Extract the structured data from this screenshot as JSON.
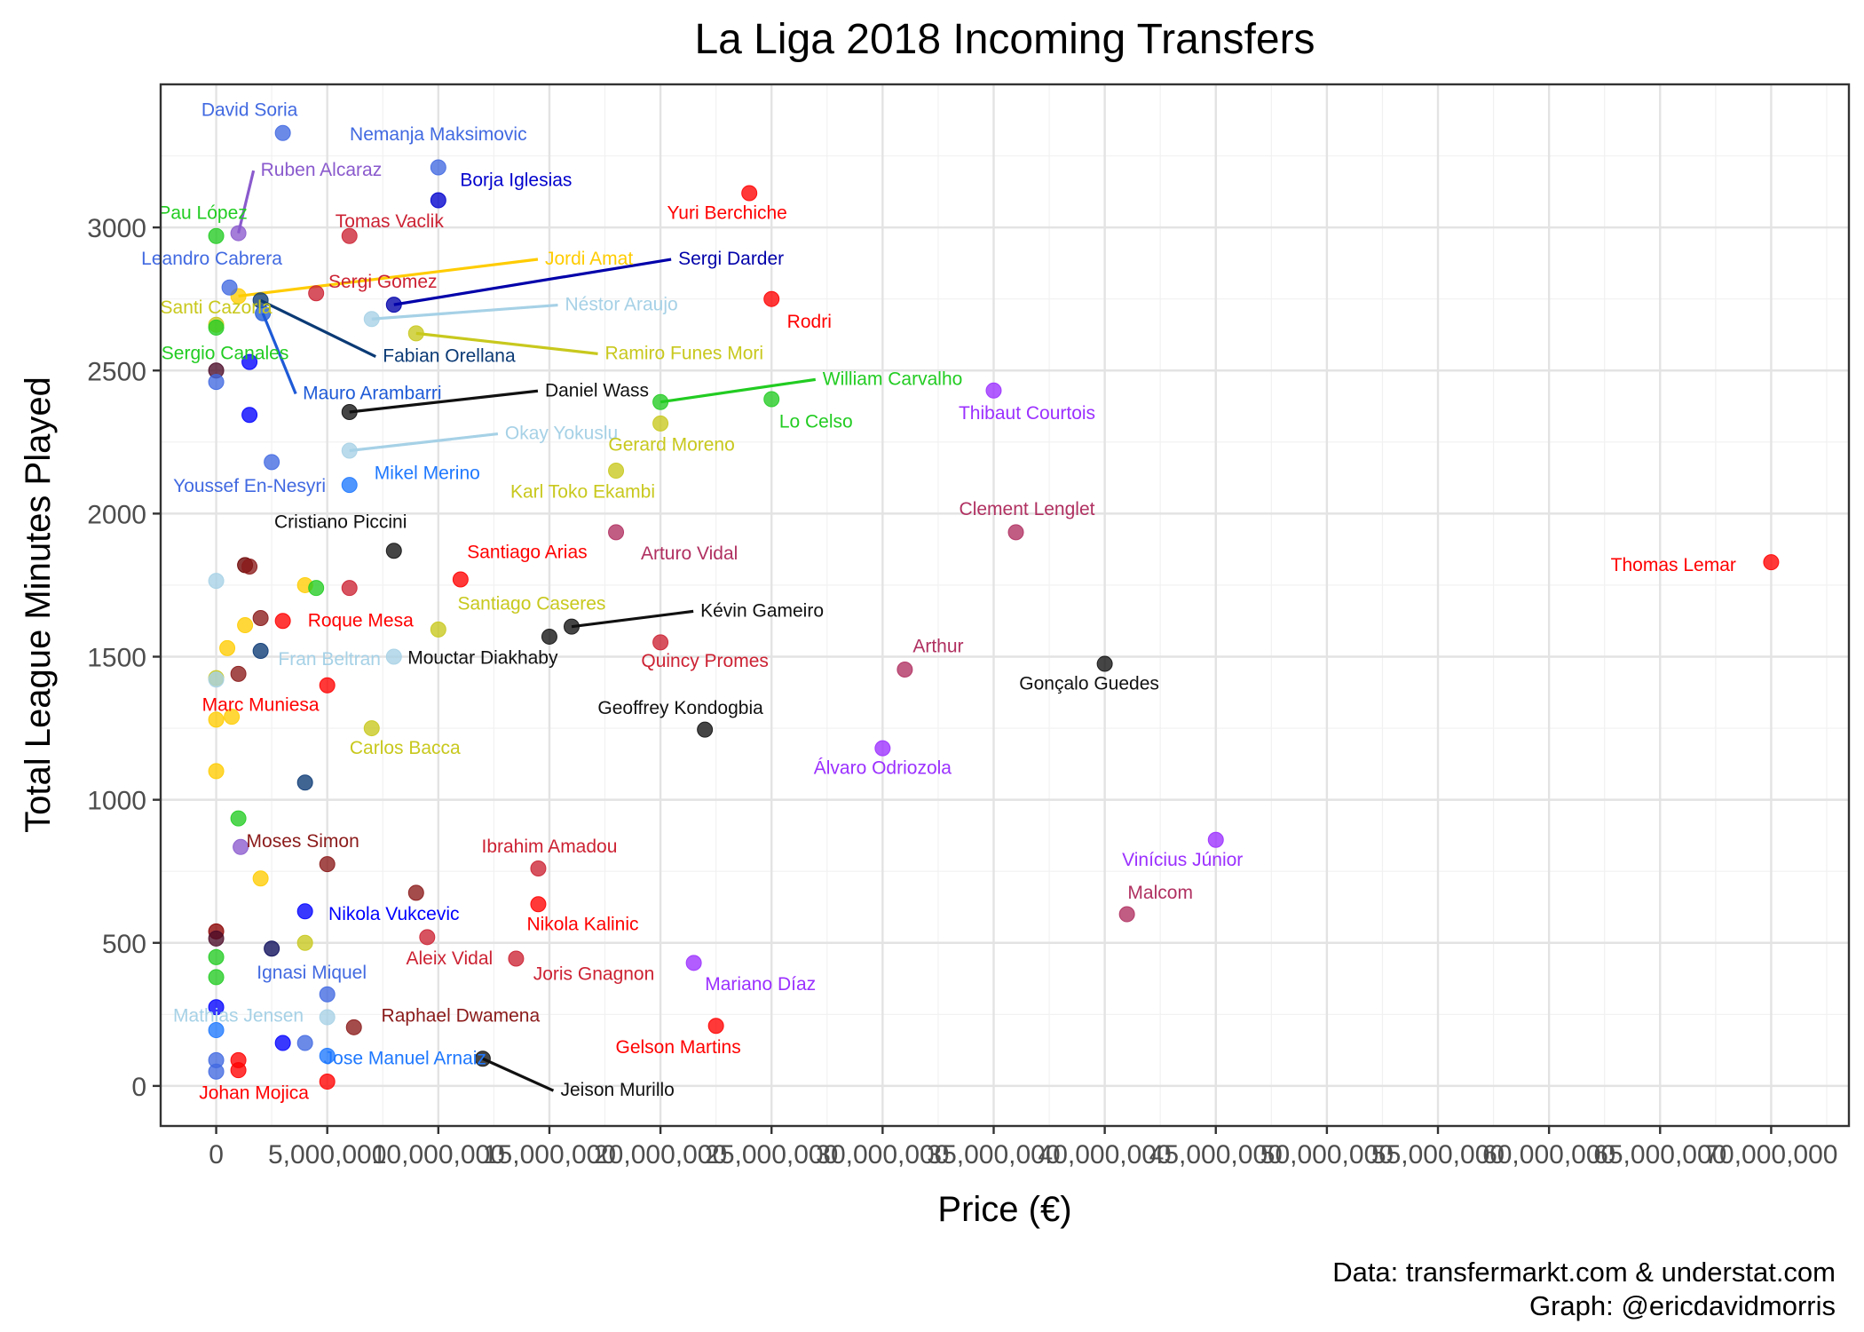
{
  "chart_data": {
    "type": "scatter",
    "title": "La Liga 2018 Incoming Transfers",
    "xlabel": "Price (€)",
    "ylabel": "Total League Minutes Played",
    "caption_lines": [
      "Data: transfermarkt.com & understat.com",
      "Graph: @ericdavidmorris"
    ],
    "xlim": [
      -2500000,
      73500000
    ],
    "ylim": [
      -140,
      3500
    ],
    "x_ticks": [
      0,
      5000000,
      10000000,
      15000000,
      20000000,
      25000000,
      30000000,
      35000000,
      40000000,
      45000000,
      50000000,
      55000000,
      60000000,
      65000000,
      70000000
    ],
    "x_tick_labels": [
      "0",
      "5,000,000",
      "10,000,000",
      "15,000,000",
      "20,000,000",
      "25,000,000",
      "30,000,000",
      "35,000,000",
      "40,000,000",
      "45,000,000",
      "50,000,000",
      "55,000,000",
      "60,000,000",
      "65,000,000",
      "70,000,000"
    ],
    "y_ticks": [
      0,
      500,
      1000,
      1500,
      2000,
      2500,
      3000
    ],
    "y_tick_labels": [
      "0",
      "500",
      "1000",
      "1500",
      "2000",
      "2500",
      "3000"
    ],
    "grid": true,
    "legend": "none",
    "points": [
      {
        "name": "David Soria",
        "x": 3000000,
        "y": 3330,
        "color": "#4169e1",
        "lx": 1500000,
        "ly": 3390
      },
      {
        "name": "Nemanja Maksimovic",
        "x": 10000000,
        "y": 3210,
        "color": "#4169e1",
        "lx": 10000000,
        "ly": 3305
      },
      {
        "name": "Borja Iglesias",
        "x": 10000000,
        "y": 3095,
        "color": "#0000cd",
        "lx": 13500000,
        "ly": 3145,
        "anchor": "middle"
      },
      {
        "name": "Ruben Alcaraz",
        "x": 1000000,
        "y": 2980,
        "color": "#8a5acd",
        "lx": 2000000,
        "ly": 3180,
        "line": true
      },
      {
        "name": "Yuri Berchiche",
        "x": 24000000,
        "y": 3120,
        "color": "#ff0000",
        "lx": 23000000,
        "ly": 3030
      },
      {
        "name": "Pau López",
        "x": 0,
        "y": 2970,
        "color": "#22cc22",
        "lx": -600000,
        "ly": 3030
      },
      {
        "name": "Tomas Vaclik",
        "x": 6000000,
        "y": 2970,
        "color": "#cc2233",
        "lx": 7800000,
        "ly": 3000
      },
      {
        "name": "Jordi Amat",
        "x": 1000000,
        "y": 2760,
        "color": "#ffcc00",
        "lx": 14800000,
        "ly": 2870,
        "line": true
      },
      {
        "name": "Sergi Darder",
        "x": 8000000,
        "y": 2730,
        "color": "#0000aa",
        "lx": 20800000,
        "ly": 2870,
        "line": true
      },
      {
        "name": "Leandro Cabrera",
        "x": 600000,
        "y": 2790,
        "color": "#4169e1",
        "lx": -200000,
        "ly": 2870
      },
      {
        "name": "Sergi Gomez",
        "x": 4500000,
        "y": 2770,
        "color": "#cc2233",
        "lx": 7500000,
        "ly": 2790
      },
      {
        "name": "Rodri",
        "x": 25000000,
        "y": 2750,
        "color": "#ff0000",
        "lx": 26700000,
        "ly": 2650
      },
      {
        "name": "Néstor Araujo",
        "x": 7000000,
        "y": 2680,
        "color": "#a6d1e6",
        "lx": 15700000,
        "ly": 2710,
        "line": true
      },
      {
        "name": "Santi Cazorla",
        "x": 0,
        "y": 2660,
        "color": "#c8c81e",
        "lx": 0,
        "ly": 2700
      },
      {
        "name": "Ramiro Funes Mori",
        "x": 9000000,
        "y": 2630,
        "color": "#c8c81e",
        "lx": 17500000,
        "ly": 2540,
        "line": true
      },
      {
        "name": "Fabian Orellana",
        "x": 2000000,
        "y": 2745,
        "color": "#0b3a75",
        "lx": 7500000,
        "ly": 2530,
        "line": true
      },
      {
        "name": "Sergio Canales",
        "x": 0,
        "y": 2650,
        "color": "#22cc22",
        "lx": 400000,
        "ly": 2540
      },
      {
        "name": "William Carvalho",
        "x": 20000000,
        "y": 2390,
        "color": "#22cc22",
        "lx": 27300000,
        "ly": 2450,
        "line": true
      },
      {
        "name": "Mauro Arambarri",
        "x": 2100000,
        "y": 2700,
        "color": "#1e5ad7",
        "lx": 3900000,
        "ly": 2400,
        "line": true
      },
      {
        "name": "Daniel Wass",
        "x": 6000000,
        "y": 2355,
        "color": "#111111",
        "lx": 14800000,
        "ly": 2410,
        "line": true
      },
      {
        "name": "Thibaut Courtois",
        "x": 35000000,
        "y": 2430,
        "color": "#9b30ff",
        "lx": 36500000,
        "ly": 2330
      },
      {
        "name": "Lo Celso",
        "x": 25000000,
        "y": 2400,
        "color": "#22cc22",
        "lx": 27000000,
        "ly": 2300
      },
      {
        "name": "Okay Yokuslu",
        "x": 6000000,
        "y": 2220,
        "color": "#a6d1e6",
        "lx": 13000000,
        "ly": 2260,
        "line": true
      },
      {
        "name": "Gerard Moreno",
        "x": 20000000,
        "y": 2315,
        "color": "#c8c81e",
        "lx": 20500000,
        "ly": 2220
      },
      {
        "name": "Mikel Merino",
        "x": 6000000,
        "y": 2100,
        "color": "#1e78ff",
        "lx": 9500000,
        "ly": 2120
      },
      {
        "name": "Youssef En-Nesyri",
        "x": 2500000,
        "y": 2180,
        "color": "#4169e1",
        "lx": 1500000,
        "ly": 2075
      },
      {
        "name": "Karl Toko Ekambi",
        "x": 18000000,
        "y": 2150,
        "color": "#c8c81e",
        "lx": 16500000,
        "ly": 2055
      },
      {
        "name": "Clement Lenglet",
        "x": 36000000,
        "y": 1935,
        "color": "#b03060",
        "lx": 36500000,
        "ly": 1995
      },
      {
        "name": "Arturo Vidal",
        "x": 18000000,
        "y": 1935,
        "color": "#b03060",
        "lx": 21300000,
        "ly": 1840
      },
      {
        "name": "Thomas Lemar",
        "x": 70000000,
        "y": 1830,
        "color": "#ff0000",
        "lx": 65600000,
        "ly": 1800
      },
      {
        "name": "Cristiano Piccini",
        "x": 8000000,
        "y": 1870,
        "color": "#111111",
        "lx": 5600000,
        "ly": 1950
      },
      {
        "name": "Santiago Arias",
        "x": 11000000,
        "y": 1770,
        "color": "#ff0000",
        "lx": 14000000,
        "ly": 1845
      },
      {
        "name": "Santiago Caseres",
        "x": 10000000,
        "y": 1595,
        "color": "#c8c81e",
        "lx": 14200000,
        "ly": 1665
      },
      {
        "name": "Kévin Gameiro",
        "x": 16000000,
        "y": 1605,
        "color": "#111111",
        "lx": 21800000,
        "ly": 1640,
        "line": true
      },
      {
        "name": "Roque Mesa",
        "x": 3000000,
        "y": 1625,
        "color": "#ff0000",
        "lx": 6500000,
        "ly": 1605
      },
      {
        "name": "Mouctar Diakhaby",
        "x": 15000000,
        "y": 1570,
        "color": "#111111",
        "lx": 12000000,
        "ly": 1475
      },
      {
        "name": "Quincy Promes",
        "x": 20000000,
        "y": 1550,
        "color": "#cc2233",
        "lx": 22000000,
        "ly": 1465
      },
      {
        "name": "Arthur",
        "x": 31000000,
        "y": 1455,
        "color": "#b03060",
        "lx": 32500000,
        "ly": 1515
      },
      {
        "name": "Gonçalo Guedes",
        "x": 40000000,
        "y": 1475,
        "color": "#111111",
        "lx": 39300000,
        "ly": 1385
      },
      {
        "name": "Fran Beltran",
        "x": 8000000,
        "y": 1500,
        "color": "#a6d1e6",
        "lx": 5100000,
        "ly": 1470
      },
      {
        "name": "Geoffrey Kondogbia",
        "x": 22000000,
        "y": 1245,
        "color": "#111111",
        "lx": 20900000,
        "ly": 1300
      },
      {
        "name": "Marc Muniesa",
        "x": 5000000,
        "y": 1400,
        "color": "#ff0000",
        "lx": 2000000,
        "ly": 1310
      },
      {
        "name": "Carlos Bacca",
        "x": 7000000,
        "y": 1250,
        "color": "#c8c81e",
        "lx": 8500000,
        "ly": 1160
      },
      {
        "name": "Álvaro Odriozola",
        "x": 30000000,
        "y": 1180,
        "color": "#9b30ff",
        "lx": 30000000,
        "ly": 1090
      },
      {
        "name": "Vinícius Júnior",
        "x": 45000000,
        "y": 860,
        "color": "#9b30ff",
        "lx": 43500000,
        "ly": 770
      },
      {
        "name": "Moses Simon",
        "x": 5000000,
        "y": 775,
        "color": "#8b1a1a",
        "lx": 3900000,
        "ly": 835
      },
      {
        "name": "Ibrahim Amadou",
        "x": 14500000,
        "y": 760,
        "color": "#cc2233",
        "lx": 15000000,
        "ly": 815
      },
      {
        "name": "Malcom",
        "x": 41000000,
        "y": 600,
        "color": "#b03060",
        "lx": 42500000,
        "ly": 655
      },
      {
        "name": "Nikola Vukcevic",
        "x": 4000000,
        "y": 610,
        "color": "#0000ff",
        "lx": 8000000,
        "ly": 580
      },
      {
        "name": "Nikola Kalinic",
        "x": 14500000,
        "y": 635,
        "color": "#ff0000",
        "lx": 16500000,
        "ly": 545
      },
      {
        "name": "Aleix Vidal",
        "x": 13500000,
        "y": 445,
        "color": "#cc2233",
        "lx": 10500000,
        "ly": 425
      },
      {
        "name": "Ignasi Miquel",
        "x": 5000000,
        "y": 320,
        "color": "#4169e1",
        "lx": 4300000,
        "ly": 375
      },
      {
        "name": "Joris Gnagnon",
        "x": 9500000,
        "y": 520,
        "color": "#cc2233",
        "lx": 17000000,
        "ly": 370
      },
      {
        "name": "Mariano Díaz",
        "x": 21500000,
        "y": 430,
        "color": "#9b30ff",
        "lx": 24500000,
        "ly": 335
      },
      {
        "name": "Mathias Jensen",
        "x": 5000000,
        "y": 240,
        "color": "#a6d1e6",
        "lx": 1000000,
        "ly": 225
      },
      {
        "name": "Raphael Dwamena",
        "x": 6200000,
        "y": 205,
        "color": "#8b1a1a",
        "lx": 11000000,
        "ly": 225
      },
      {
        "name": "Gelson Martins",
        "x": 22500000,
        "y": 210,
        "color": "#ff0000",
        "lx": 20800000,
        "ly": 115
      },
      {
        "name": "Jose Manuel Arnaiz",
        "x": 5000000,
        "y": 105,
        "color": "#1e78ff",
        "lx": 8500000,
        "ly": 75
      },
      {
        "name": "Jeison Murillo",
        "x": 12000000,
        "y": 95,
        "color": "#111111",
        "lx": 15500000,
        "ly": -35,
        "line": true
      },
      {
        "name": "Johan Mojica",
        "x": 5000000,
        "y": 15,
        "color": "#ff0000",
        "lx": 1700000,
        "ly": -45
      },
      {
        "name": "",
        "x": 0,
        "y": 2500,
        "color": "#4a0a28"
      },
      {
        "name": "",
        "x": 0,
        "y": 2460,
        "color": "#4169e1"
      },
      {
        "name": "",
        "x": 1500000,
        "y": 2530,
        "color": "#0000ff"
      },
      {
        "name": "",
        "x": 1500000,
        "y": 2345,
        "color": "#0000ff"
      },
      {
        "name": "",
        "x": 1300000,
        "y": 1820,
        "color": "#6b0000"
      },
      {
        "name": "",
        "x": 1500000,
        "y": 1815,
        "color": "#8b1a1a"
      },
      {
        "name": "",
        "x": 0,
        "y": 1765,
        "color": "#a6d1e6"
      },
      {
        "name": "",
        "x": 4000000,
        "y": 1750,
        "color": "#ffcc00"
      },
      {
        "name": "",
        "x": 4500000,
        "y": 1740,
        "color": "#22cc22"
      },
      {
        "name": "",
        "x": 6000000,
        "y": 1740,
        "color": "#cc2233"
      },
      {
        "name": "",
        "x": 2000000,
        "y": 1635,
        "color": "#8b1a1a"
      },
      {
        "name": "",
        "x": 1300000,
        "y": 1610,
        "color": "#ffcc00"
      },
      {
        "name": "",
        "x": 2000000,
        "y": 1520,
        "color": "#0b3a75"
      },
      {
        "name": "",
        "x": 500000,
        "y": 1530,
        "color": "#ffcc00"
      },
      {
        "name": "",
        "x": 1000000,
        "y": 1440,
        "color": "#8b1a1a"
      },
      {
        "name": "",
        "x": 0,
        "y": 1425,
        "color": "#c8c81e"
      },
      {
        "name": "",
        "x": 0,
        "y": 1420,
        "color": "#a6d1e6"
      },
      {
        "name": "",
        "x": 0,
        "y": 1280,
        "color": "#ffcc00"
      },
      {
        "name": "",
        "x": 700000,
        "y": 1290,
        "color": "#ffcc00"
      },
      {
        "name": "",
        "x": 0,
        "y": 1100,
        "color": "#ffcc00"
      },
      {
        "name": "",
        "x": 4000000,
        "y": 1060,
        "color": "#0b3a75"
      },
      {
        "name": "",
        "x": 1000000,
        "y": 935,
        "color": "#22cc22"
      },
      {
        "name": "",
        "x": 1100000,
        "y": 835,
        "color": "#8a5acd"
      },
      {
        "name": "",
        "x": 2000000,
        "y": 725,
        "color": "#ffcc00"
      },
      {
        "name": "",
        "x": 9000000,
        "y": 675,
        "color": "#8b1a1a"
      },
      {
        "name": "",
        "x": 0,
        "y": 540,
        "color": "#8b0000"
      },
      {
        "name": "",
        "x": 0,
        "y": 515,
        "color": "#4a0a28"
      },
      {
        "name": "",
        "x": 2500000,
        "y": 480,
        "color": "#0b0b5a"
      },
      {
        "name": "",
        "x": 4000000,
        "y": 500,
        "color": "#c8c81e"
      },
      {
        "name": "",
        "x": 0,
        "y": 450,
        "color": "#22cc22"
      },
      {
        "name": "",
        "x": 0,
        "y": 380,
        "color": "#22cc22"
      },
      {
        "name": "",
        "x": 0,
        "y": 275,
        "color": "#0000ff"
      },
      {
        "name": "",
        "x": 0,
        "y": 195,
        "color": "#1e78ff"
      },
      {
        "name": "",
        "x": 3000000,
        "y": 150,
        "color": "#0000ff"
      },
      {
        "name": "",
        "x": 4000000,
        "y": 150,
        "color": "#4169e1"
      },
      {
        "name": "",
        "x": 0,
        "y": 90,
        "color": "#4169e1"
      },
      {
        "name": "",
        "x": 0,
        "y": 50,
        "color": "#4169e1"
      },
      {
        "name": "",
        "x": 1000000,
        "y": 90,
        "color": "#ff0000"
      },
      {
        "name": "",
        "x": 1000000,
        "y": 55,
        "color": "#ff0000"
      }
    ]
  }
}
